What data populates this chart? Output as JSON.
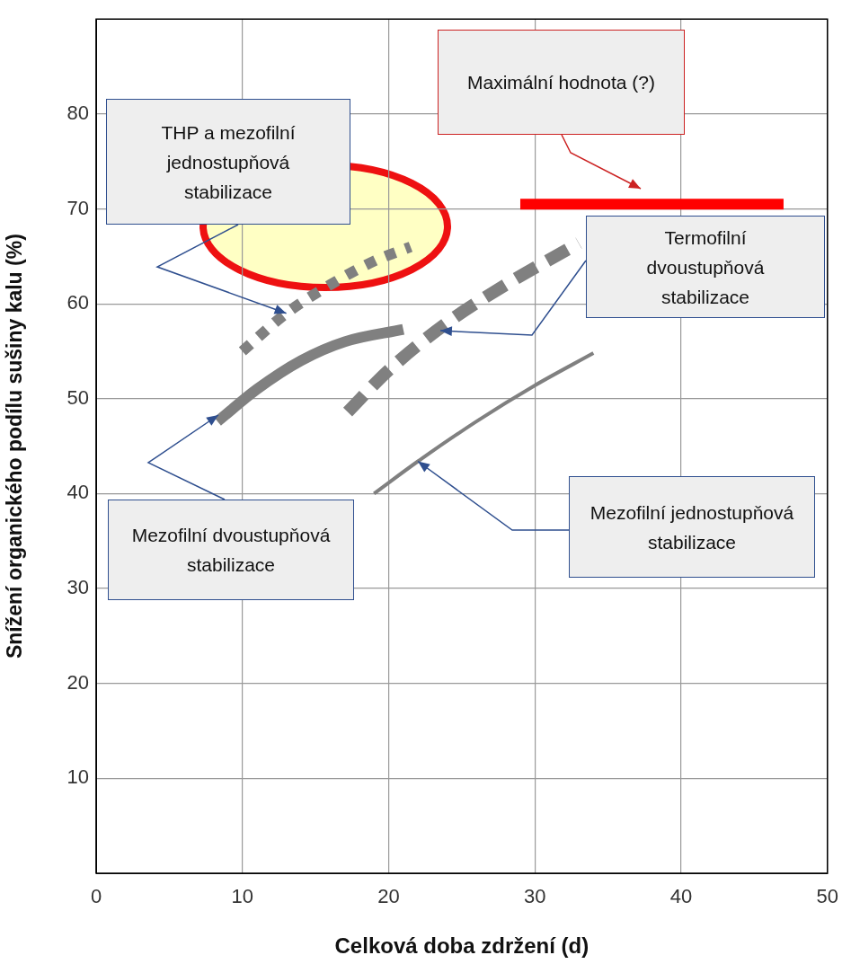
{
  "chart_data": {
    "type": "line",
    "xlabel": "Celková doba zdržení (d)",
    "ylabel": "Snížení organického podílu sušiny kalu (%)",
    "xlim": [
      0,
      50
    ],
    "xticks": [
      0,
      10,
      20,
      30,
      40,
      50
    ],
    "ylim": [
      0,
      90
    ],
    "yticks": [
      10,
      20,
      30,
      40,
      50,
      60,
      70,
      80
    ],
    "grid": true,
    "legend": false,
    "marker": "none",
    "series": [
      {
        "color": "#808080",
        "line_style": "dotted",
        "x": [
          10,
          13,
          16,
          19,
          21.5
        ],
        "values": [
          55,
          59,
          62,
          64.5,
          66
        ]
      },
      {
        "color": "#808080",
        "line_style": "solid",
        "x": [
          8.3,
          11,
          14,
          17,
          21
        ],
        "values": [
          47.6,
          51,
          54,
          56,
          57.3
        ]
      },
      {
        "color": "#808080",
        "line_style": "dashed",
        "x": [
          17.2,
          20,
          24,
          28,
          33
        ],
        "values": [
          48.6,
          53,
          58,
          62,
          66.4
        ]
      },
      {
        "color": "#808080",
        "line_style": "solid",
        "x": [
          19,
          22,
          26,
          30,
          34
        ],
        "values": [
          40,
          43.4,
          47.6,
          51.4,
          54.8
        ]
      },
      {
        "color": "#ff0000",
        "line_style": "solid",
        "x": [
          29,
          47
        ],
        "values": [
          70.5,
          70.5
        ]
      }
    ],
    "annotations": [
      {
        "text": "THP a mezofilní jednostupňová stabilizace",
        "x": 13,
        "y": 59
      },
      "Maximální hodnota (?)",
      "Termofilní dvoustupňová stabilizace",
      "Mezofilní dvoustupňová stabilizace",
      {
        "text": "Mezofilní jednostupňová stabilizace",
        "x": 22,
        "y": 43.4
      }
    ]
  }
}
